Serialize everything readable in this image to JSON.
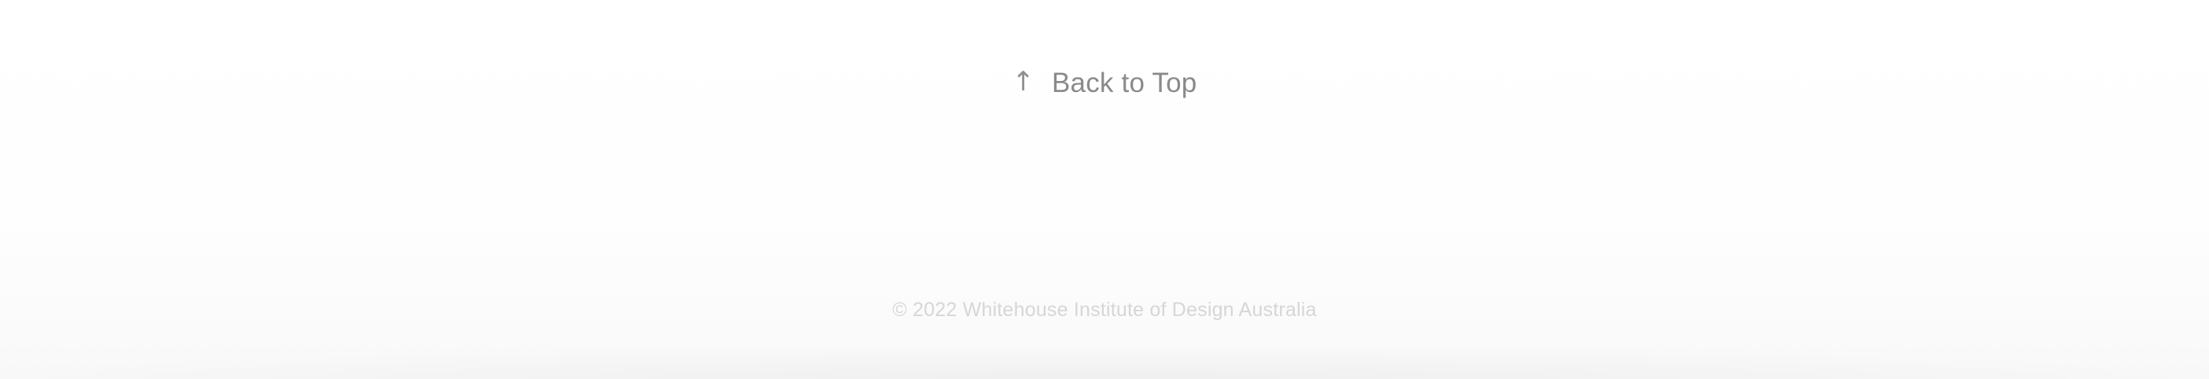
{
  "footer": {
    "back_to_top": {
      "icon": "arrow-up-icon",
      "icon_glyph": "↑",
      "label": "Back to Top"
    },
    "copyright": "© 2022 Whitehouse Institute of Design Australia"
  },
  "colors": {
    "background": "#ffffff",
    "link_text": "#8a8a8a",
    "copyright_text": "#d6d6d6"
  }
}
